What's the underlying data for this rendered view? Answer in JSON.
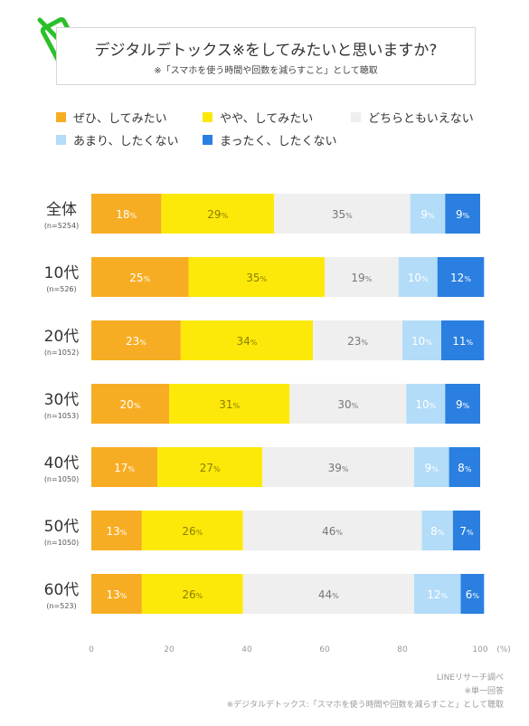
{
  "title": "デジタルデトックス※をしてみたいと思いますか?",
  "subtitle": "※「スマホを使う時間や回数を減らすこと」として聴取",
  "logo_icon": "phone-crossed-icon",
  "source_lines": [
    "LINEリサーチ調べ",
    "※単一回答",
    "※デジタルデトックス:「スマホを使う時間や回数を減らすこと」として聴取"
  ],
  "colors": [
    "#f7ad23",
    "#fde909",
    "#efefef",
    "#b3dcf8",
    "#2a7fe0"
  ],
  "chart_data": {
    "type": "bar",
    "orientation": "horizontal",
    "stacked": true,
    "title": "デジタルデトックス※をしてみたいと思いますか?",
    "subtitle": "※「スマホを使う時間や回数を減らすこと」として聴取",
    "xlabel": "(%)",
    "xlim": [
      0,
      100
    ],
    "xticks": [
      0,
      20,
      40,
      60,
      80,
      100
    ],
    "value_suffix": "%",
    "legend_position": "top",
    "categories": [
      "全体",
      "10代",
      "20代",
      "30代",
      "40代",
      "50代",
      "60代"
    ],
    "category_sublabels": [
      "(n=5254)",
      "(n=526)",
      "(n=1052)",
      "(n=1053)",
      "(n=1050)",
      "(n=1050)",
      "(n=523)"
    ],
    "series": [
      {
        "name": "ぜひ、してみたい",
        "color": "#f7ad23",
        "values": [
          18,
          25,
          23,
          20,
          17,
          13,
          13
        ]
      },
      {
        "name": "やや、してみたい",
        "color": "#fde909",
        "values": [
          29,
          35,
          34,
          31,
          27,
          26,
          26
        ]
      },
      {
        "name": "どちらともいえない",
        "color": "#efefef",
        "values": [
          35,
          19,
          23,
          30,
          39,
          46,
          44
        ]
      },
      {
        "name": "あまり、したくない",
        "color": "#b3dcf8",
        "values": [
          9,
          10,
          10,
          10,
          9,
          8,
          12
        ]
      },
      {
        "name": "まったく、したくない",
        "color": "#2a7fe0",
        "values": [
          9,
          12,
          11,
          9,
          8,
          7,
          6
        ]
      }
    ]
  }
}
